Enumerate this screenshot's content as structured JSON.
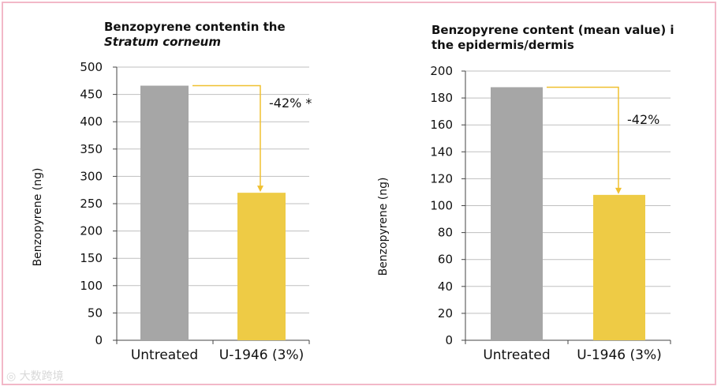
{
  "chart_data": [
    {
      "type": "bar",
      "title_line1": "Benzopyrene contentin the",
      "title_line2": "Stratum corneum",
      "ylabel": "Benzopyrene (ng)",
      "categories": [
        "Untreated",
        "U-1946 (3%)"
      ],
      "values": [
        466,
        270
      ],
      "ylim": [
        0,
        500
      ],
      "yticks": [
        0,
        50,
        100,
        150,
        200,
        250,
        300,
        350,
        400,
        450,
        500
      ],
      "annotation": "-42% *",
      "colors": [
        "#a6a6a6",
        "#eecb45"
      ],
      "arrow_color": "#f0c030",
      "grid": true
    },
    {
      "type": "bar",
      "title_line1": "Benzopyrene content (mean value) i",
      "title_line2": "the epidermis/dermis",
      "ylabel": "Benzopyrene (ng)",
      "categories": [
        "Untreated",
        "U-1946 (3%)"
      ],
      "values": [
        188,
        108
      ],
      "ylim": [
        0,
        200
      ],
      "yticks": [
        0,
        20,
        40,
        60,
        80,
        100,
        120,
        140,
        160,
        180,
        200
      ],
      "annotation": "-42%",
      "colors": [
        "#a6a6a6",
        "#eecb45"
      ],
      "arrow_color": "#f0c030",
      "grid": true
    }
  ],
  "watermark": "大数跨境"
}
